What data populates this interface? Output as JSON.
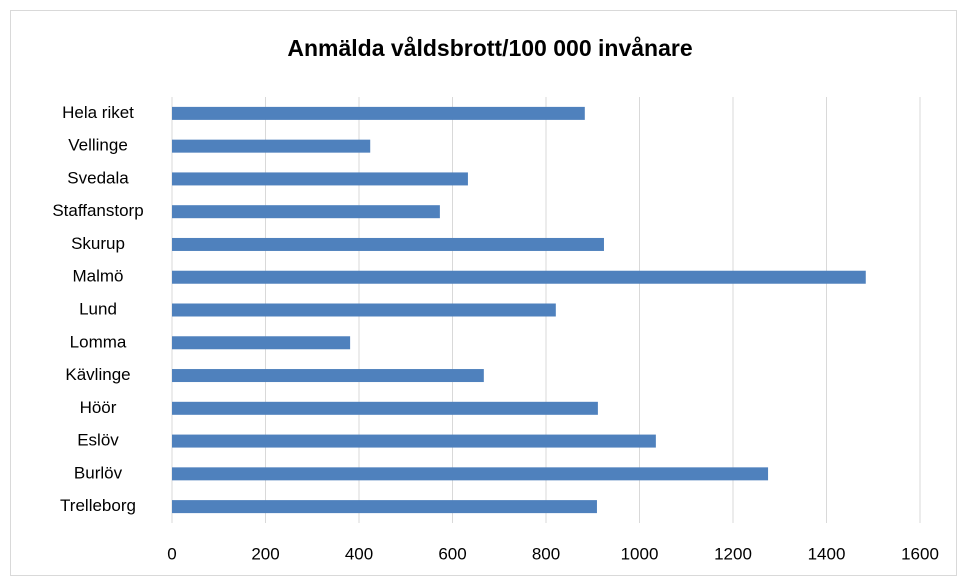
{
  "chart_data": {
    "type": "barh",
    "title": "Anmälda våldsbrott/100 000 invånare",
    "categories": [
      "Hela riket",
      "Vellinge",
      "Svedala",
      "Staffanstorp",
      "Skurup",
      "Malmö",
      "Lund",
      "Lomma",
      "Kävlinge",
      "Höör",
      "Eslöv",
      "Burlöv",
      "Trelleborg"
    ],
    "values": [
      883,
      424,
      633,
      573,
      924,
      1484,
      821,
      381,
      667,
      911,
      1035,
      1275,
      909
    ],
    "color": "#4f81bd",
    "xlim": [
      0,
      1600
    ],
    "xticks": [
      0,
      200,
      400,
      600,
      800,
      1000,
      1200,
      1400,
      1600
    ],
    "grid": true
  }
}
